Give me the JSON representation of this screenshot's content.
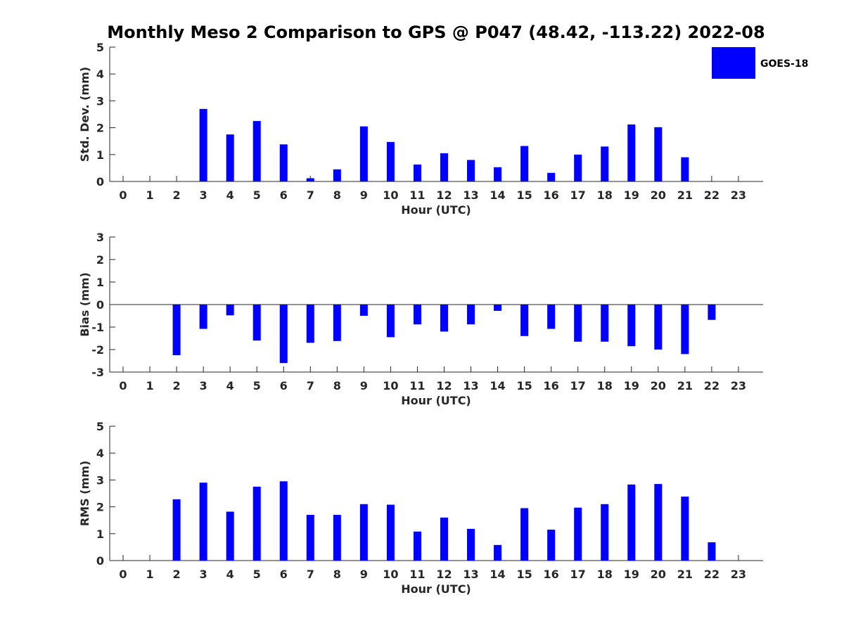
{
  "title": "Monthly Meso 2 Comparison to GPS @ P047 (48.42, -113.22) 2022-08",
  "legend": {
    "label": "GOES-18",
    "color": "#0000ff"
  },
  "chart_data": [
    {
      "type": "bar",
      "name": "std-dev",
      "ylabel": "Std. Dev. (mm)",
      "xlabel": "Hour (UTC)",
      "ylim": [
        0,
        5
      ],
      "yticks": [
        0,
        1,
        2,
        3,
        4,
        5
      ],
      "categories": [
        "0",
        "1",
        "2",
        "3",
        "4",
        "5",
        "6",
        "7",
        "8",
        "9",
        "10",
        "11",
        "12",
        "13",
        "14",
        "15",
        "16",
        "17",
        "18",
        "19",
        "20",
        "21",
        "22",
        "23"
      ],
      "series": [
        {
          "name": "GOES-18",
          "values": [
            null,
            null,
            null,
            2.7,
            1.75,
            2.25,
            1.38,
            0.12,
            0.45,
            2.05,
            1.47,
            0.63,
            1.05,
            0.8,
            0.53,
            1.32,
            0.32,
            1.0,
            1.3,
            2.12,
            2.02,
            0.9,
            null,
            null
          ]
        }
      ],
      "zero_line": false
    },
    {
      "type": "bar",
      "name": "bias",
      "ylabel": "Bias (mm)",
      "xlabel": "Hour (UTC)",
      "ylim": [
        -3,
        3
      ],
      "yticks": [
        -3,
        -2,
        -1,
        0,
        1,
        2,
        3
      ],
      "categories": [
        "0",
        "1",
        "2",
        "3",
        "4",
        "5",
        "6",
        "7",
        "8",
        "9",
        "10",
        "11",
        "12",
        "13",
        "14",
        "15",
        "16",
        "17",
        "18",
        "19",
        "20",
        "21",
        "22",
        "23"
      ],
      "series": [
        {
          "name": "GOES-18",
          "values": [
            null,
            null,
            -2.25,
            -1.08,
            -0.48,
            -1.6,
            -2.6,
            -1.7,
            -1.62,
            -0.5,
            -1.45,
            -0.88,
            -1.2,
            -0.88,
            -0.28,
            -1.4,
            -1.08,
            -1.65,
            -1.65,
            -1.85,
            -2.0,
            -2.2,
            -0.68,
            null
          ]
        }
      ],
      "zero_line": true
    },
    {
      "type": "bar",
      "name": "rms",
      "ylabel": "RMS (mm)",
      "xlabel": "Hour (UTC)",
      "ylim": [
        0,
        5
      ],
      "yticks": [
        0,
        1,
        2,
        3,
        4,
        5
      ],
      "categories": [
        "0",
        "1",
        "2",
        "3",
        "4",
        "5",
        "6",
        "7",
        "8",
        "9",
        "10",
        "11",
        "12",
        "13",
        "14",
        "15",
        "16",
        "17",
        "18",
        "19",
        "20",
        "21",
        "22",
        "23"
      ],
      "series": [
        {
          "name": "GOES-18",
          "values": [
            null,
            null,
            2.28,
            2.9,
            1.82,
            2.75,
            2.95,
            1.7,
            1.7,
            2.1,
            2.08,
            1.08,
            1.6,
            1.18,
            0.58,
            1.95,
            1.15,
            1.97,
            2.1,
            2.83,
            2.85,
            2.38,
            0.68,
            null
          ]
        }
      ],
      "zero_line": false
    }
  ]
}
